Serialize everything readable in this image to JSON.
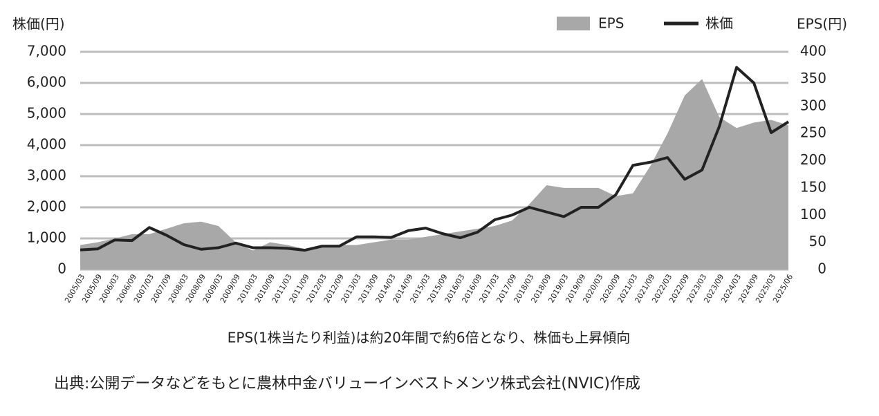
{
  "chart_data": {
    "type": "area-line",
    "y_label": "株価(円)",
    "y2_label": "EPS(円)",
    "caption": "EPS(1株当たり利益)は約20年間で約6倍となり、株価も上昇傾向",
    "source": "出典:公開データなどをもとに農林中金バリューインベストメンツ株式会社(NVIC)作成",
    "categories": [
      "2005/03",
      "2005/09",
      "2006/03",
      "2006/09",
      "2007/03",
      "2007/09",
      "2008/03",
      "2008/09",
      "2009/03",
      "2009/09",
      "2010/03",
      "2010/09",
      "2011/03",
      "2011/09",
      "2012/03",
      "2012/09",
      "2013/03",
      "2013/09",
      "2014/03",
      "2014/09",
      "2015/03",
      "2015/09",
      "2016/03",
      "2016/09",
      "2017/03",
      "2017/09",
      "2018/03",
      "2018/09",
      "2019/03",
      "2019/09",
      "2020/03",
      "2020/09",
      "2021/03",
      "2021/09",
      "2022/03",
      "2022/09",
      "2023/03",
      "2023/09",
      "2024/03",
      "2024/09",
      "2025/03",
      "2025/06"
    ],
    "series": [
      {
        "name": "EPS",
        "color": "#a8a8a8",
        "axis": "y2",
        "values": [
          45,
          50,
          57,
          65,
          65,
          75,
          85,
          88,
          80,
          50,
          35,
          50,
          45,
          38,
          45,
          45,
          45,
          50,
          55,
          55,
          60,
          65,
          70,
          75,
          80,
          90,
          120,
          155,
          150,
          150,
          150,
          135,
          140,
          190,
          250,
          320,
          350,
          280,
          260,
          270,
          275,
          265
        ]
      },
      {
        "name": "株価",
        "color": "#222222",
        "values": [
          630,
          660,
          950,
          930,
          1350,
          1100,
          800,
          650,
          700,
          850,
          700,
          700,
          680,
          620,
          750,
          750,
          1050,
          1050,
          1030,
          1250,
          1330,
          1150,
          1020,
          1200,
          1600,
          1750,
          2000,
          1850,
          1700,
          2000,
          2000,
          2400,
          3350,
          3450,
          3600,
          2900,
          3200,
          4600,
          6500,
          6000,
          4400,
          4750
        ]
      }
    ],
    "ylim": [
      0,
      7000
    ],
    "yticks": [
      0,
      {
        "value": 1000,
        "label": "1,000"
      },
      {
        "value": 2000,
        "label": "2,000"
      },
      {
        "value": 3000,
        "label": "3,000"
      },
      {
        "value": 4000,
        "label": "4,000"
      },
      {
        "value": 5000,
        "label": "5,000"
      },
      {
        "value": 6000,
        "label": "6,000"
      },
      {
        "value": 7000,
        "label": "7,000"
      }
    ],
    "y2lim": [
      0,
      400
    ],
    "y2ticks": [
      0,
      50,
      100,
      150,
      200,
      250,
      300,
      350,
      400
    ],
    "grid": true
  }
}
